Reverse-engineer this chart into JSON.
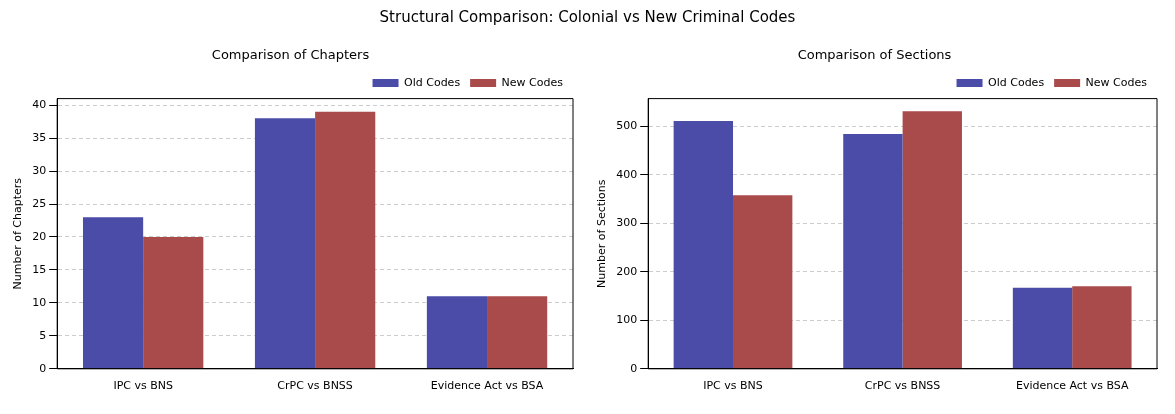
{
  "chart_data": [
    {
      "type": "bar",
      "title": "Structural Comparison: Colonial vs New Criminal Codes",
      "subtitle": "Comparison of Chapters",
      "ylabel": "Number of Chapters",
      "categories": [
        "IPC vs BNS",
        "CrPC vs BNSS",
        "Evidence Act vs BSA"
      ],
      "series": [
        {
          "name": "Old Codes",
          "color": "#4b4ba8",
          "values": [
            23,
            38,
            11
          ]
        },
        {
          "name": "New Codes",
          "color": "#aa4b4b",
          "values": [
            20,
            39,
            11
          ]
        }
      ],
      "ylim": [
        0,
        41
      ],
      "yticks": [
        0,
        5,
        10,
        15,
        20,
        25,
        30,
        35,
        40
      ],
      "grid": "y",
      "legend": "top right"
    },
    {
      "type": "bar",
      "subtitle": "Comparison of Sections",
      "ylabel": "Number of Sections",
      "categories": [
        "IPC vs BNS",
        "CrPC vs BNSS",
        "Evidence Act vs BSA"
      ],
      "series": [
        {
          "name": "Old Codes",
          "color": "#4b4ba8",
          "values": [
            511,
            484,
            167
          ]
        },
        {
          "name": "New Codes",
          "color": "#aa4b4b",
          "values": [
            358,
            531,
            170
          ]
        }
      ],
      "ylim": [
        0,
        557
      ],
      "yticks": [
        0,
        100,
        200,
        300,
        400,
        500
      ],
      "grid": "y",
      "legend": "top right"
    }
  ]
}
